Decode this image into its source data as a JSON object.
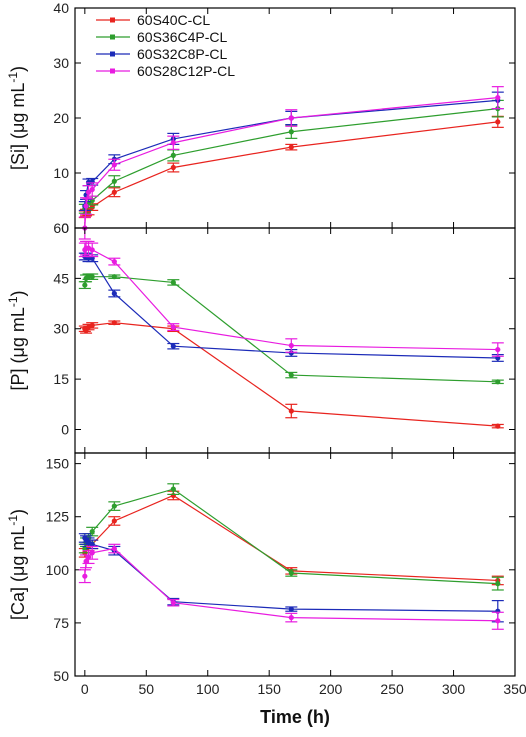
{
  "chart_data": [
    {
      "type": "line",
      "ylabel": "[Si] (μg mL",
      "ylabel_sup": "-1",
      "ylabel_close": ")",
      "ylim": [
        0,
        40
      ],
      "yticks": [
        0,
        10,
        20,
        30,
        40
      ],
      "xlim": [
        -8,
        350
      ],
      "grid": false,
      "legend_position": "top-left",
      "x": [
        0,
        1,
        3,
        6,
        24,
        72,
        168,
        336
      ],
      "series": [
        {
          "name": "60S40C-CL",
          "color": "#e8241f",
          "values": [
            2.5,
            2.8,
            3.0,
            3.8,
            6.5,
            11.0,
            14.7,
            19.3
          ],
          "err": [
            0.6,
            0.6,
            0.6,
            0.6,
            0.8,
            0.8,
            0.5,
            1.0
          ]
        },
        {
          "name": "60S36C4P-CL",
          "color": "#2e9e2e",
          "values": [
            3.5,
            4.0,
            4.5,
            5.0,
            8.5,
            13.2,
            17.5,
            21.7
          ],
          "err": [
            0.8,
            0.8,
            0.8,
            0.8,
            1.0,
            1.0,
            1.2,
            1.5
          ]
        },
        {
          "name": "60S32C8P-CL",
          "color": "#1c2bb8",
          "values": [
            4.0,
            6.0,
            8.3,
            8.4,
            12.5,
            16.2,
            20.0,
            23.2
          ],
          "err": [
            0.8,
            0.8,
            0.6,
            0.6,
            0.8,
            1.0,
            1.2,
            1.5
          ]
        },
        {
          "name": "60S28C12P-CL",
          "color": "#e81ce0",
          "values": [
            0.0,
            4.0,
            6.5,
            7.0,
            11.5,
            15.5,
            20.0,
            23.7
          ],
          "err": [
            2.0,
            1.5,
            1.2,
            1.2,
            1.0,
            1.2,
            1.5,
            2.0
          ]
        }
      ]
    },
    {
      "type": "line",
      "ylabel": "[P] (μg mL",
      "ylabel_sup": "-1",
      "ylabel_close": ")",
      "ylim": [
        -7,
        60
      ],
      "yticks": [
        0,
        15,
        30,
        45,
        60
      ],
      "xlim": [
        -8,
        350
      ],
      "grid": false,
      "x": [
        0,
        1,
        3,
        6,
        24,
        72,
        168,
        336
      ],
      "series": [
        {
          "name": "60S40C-CL",
          "color": "#e8241f",
          "values": [
            30.0,
            29.5,
            30.5,
            31.0,
            31.8,
            30.0,
            5.5,
            1.0
          ],
          "err": [
            0.8,
            0.8,
            0.8,
            0.8,
            0.5,
            0.8,
            2.0,
            0.5
          ]
        },
        {
          "name": "60S36C4P-CL",
          "color": "#2e9e2e",
          "values": [
            43.0,
            45.0,
            45.5,
            45.5,
            45.5,
            43.8,
            16.2,
            14.2
          ],
          "err": [
            1.0,
            1.0,
            0.8,
            0.8,
            0.5,
            0.8,
            0.8,
            0.5
          ]
        },
        {
          "name": "60S32C8P-CL",
          "color": "#1c2bb8",
          "values": [
            51.5,
            51.5,
            51.0,
            51.0,
            40.5,
            24.8,
            22.8,
            21.3
          ],
          "err": [
            1.0,
            1.0,
            1.0,
            1.0,
            1.0,
            0.8,
            1.0,
            1.0
          ]
        },
        {
          "name": "60S28C12P-CL",
          "color": "#e81ce0",
          "values": [
            53.5,
            54.0,
            54.0,
            53.5,
            50.0,
            30.5,
            25.0,
            23.8
          ],
          "err": [
            2.0,
            2.0,
            2.0,
            2.0,
            1.0,
            1.0,
            2.0,
            2.0
          ]
        }
      ]
    },
    {
      "type": "line",
      "ylabel": "[Ca] (μg mL",
      "ylabel_sup": "-1",
      "ylabel_close": ")",
      "ylim": [
        50,
        155
      ],
      "yticks": [
        50,
        75,
        100,
        125,
        150
      ],
      "xlim": [
        -8,
        350
      ],
      "xticks": [
        0,
        50,
        100,
        150,
        200,
        250,
        300,
        350
      ],
      "xlabel": "Time (h)",
      "grid": false,
      "x": [
        0,
        1,
        3,
        6,
        24,
        72,
        168,
        336
      ],
      "series": [
        {
          "name": "60S40C-CL",
          "color": "#e8241f",
          "values": [
            108.0,
            110.0,
            111.0,
            112.0,
            123.0,
            135.0,
            99.5,
            95.0
          ],
          "err": [
            2.0,
            2.0,
            2.0,
            2.0,
            2.0,
            2.0,
            1.5,
            2.0
          ]
        },
        {
          "name": "60S36C4P-CL",
          "color": "#2e9e2e",
          "values": [
            110.0,
            113.0,
            115.0,
            118.0,
            130.0,
            138.0,
            98.5,
            93.5
          ],
          "err": [
            2.0,
            2.0,
            2.0,
            2.0,
            2.0,
            2.5,
            1.5,
            3.0
          ]
        },
        {
          "name": "60S32C8P-CL",
          "color": "#1c2bb8",
          "values": [
            115.0,
            114.0,
            113.0,
            112.0,
            109.0,
            85.0,
            81.5,
            80.5
          ],
          "err": [
            2.0,
            2.0,
            2.0,
            2.0,
            2.0,
            1.5,
            1.0,
            5.0
          ]
        },
        {
          "name": "60S28C12P-CL",
          "color": "#e81ce0",
          "values": [
            97.0,
            104.0,
            106.0,
            108.0,
            110.0,
            84.5,
            77.5,
            76.0
          ],
          "err": [
            3.0,
            3.0,
            3.0,
            3.0,
            2.0,
            1.5,
            2.0,
            4.0
          ]
        }
      ]
    }
  ]
}
